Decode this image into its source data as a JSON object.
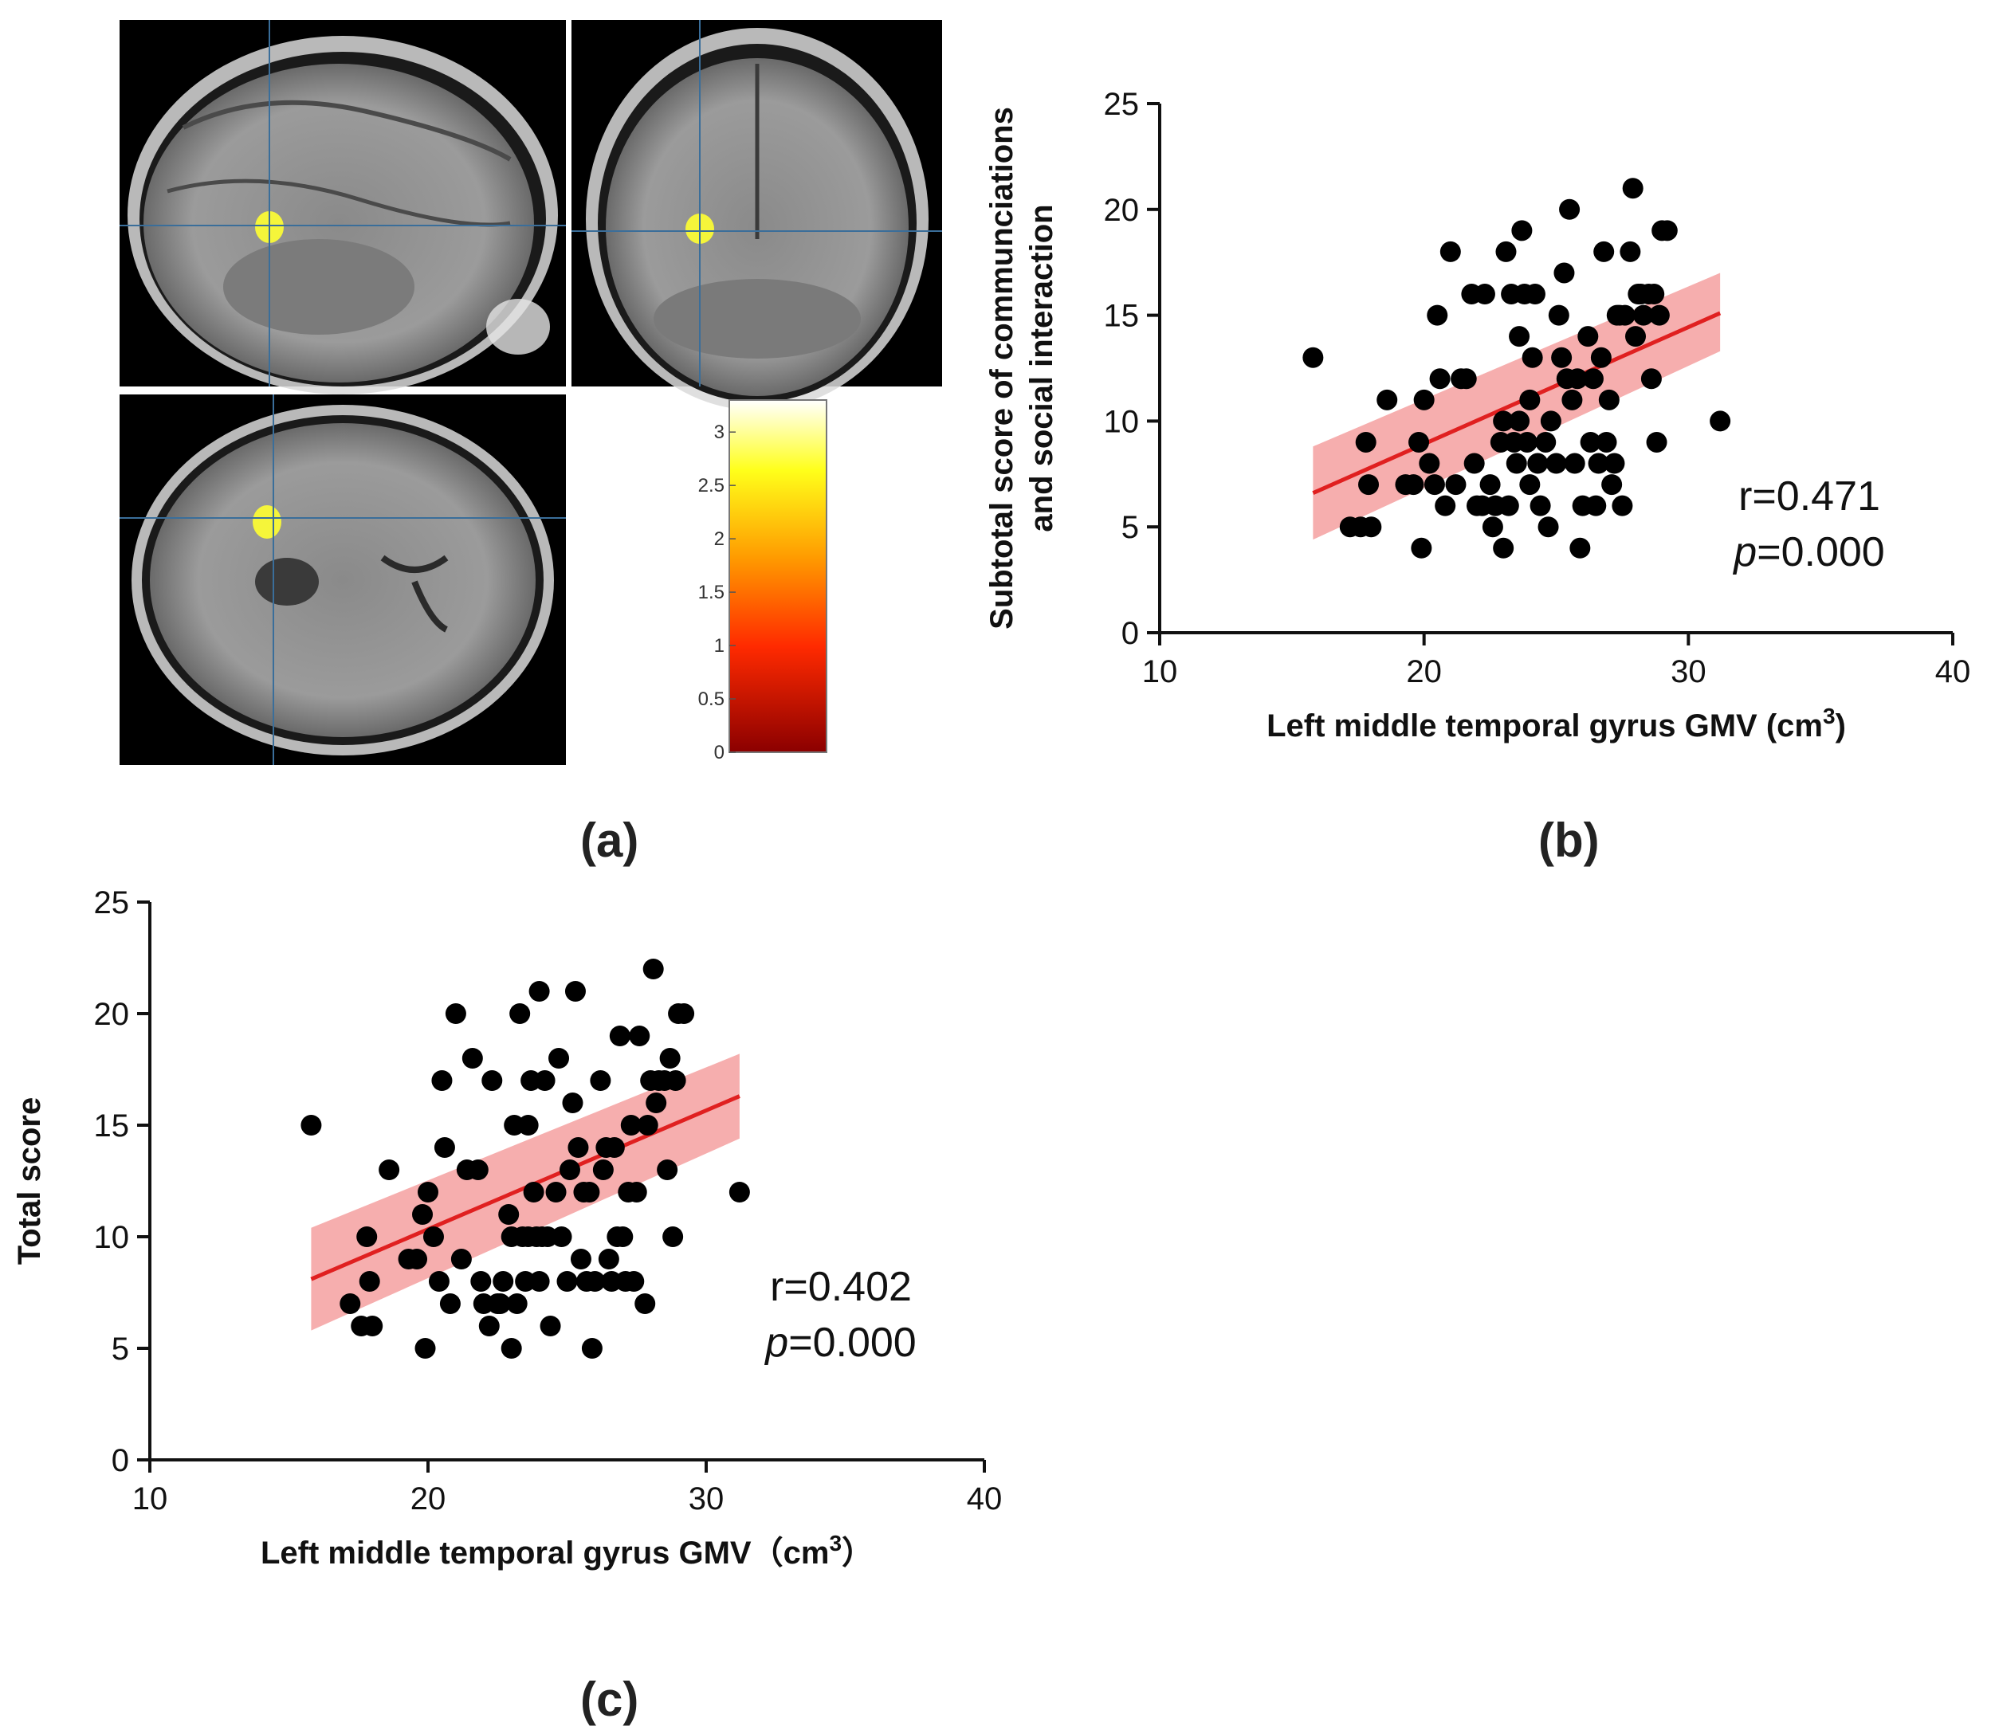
{
  "panel_labels": {
    "a": "(a)",
    "b": "(b)",
    "c": "(c)"
  },
  "colorbar": {
    "ticks": [
      "0",
      "0.5",
      "1",
      "1.5",
      "2",
      "2.5",
      "3"
    ],
    "max": 3.3
  },
  "mri": {
    "views": [
      "sagittal",
      "coronal",
      "axial"
    ],
    "highlight_color": "#f5f53a",
    "crosshair_color": "#3a6e9a"
  },
  "chart_data": [
    {
      "type": "scatter",
      "id": "b",
      "title": "",
      "xlabel": "Left middle temporal gyrus GMV (cm",
      "xlabel_sup": "3",
      "xlabel_close": ")",
      "ylabel_lines": [
        "Subtotal score of communciations",
        "and social interaction"
      ],
      "xlim": [
        10,
        40
      ],
      "ylim": [
        0,
        25
      ],
      "xticks": [
        "10",
        "20",
        "30",
        "40"
      ],
      "yticks": [
        "0",
        "5",
        "10",
        "15",
        "20",
        "25"
      ],
      "stats": {
        "r_label": "r=0.471",
        "p_italic": "p",
        "p_value": "=0.000"
      },
      "fit_line": {
        "x": [
          15.8,
          31.2
        ],
        "y": [
          6.6,
          15.1
        ]
      },
      "ci_band": {
        "x": [
          15.8,
          31.2
        ],
        "lower": [
          4.4,
          13.3
        ],
        "upper": [
          8.8,
          17.0
        ]
      },
      "line_color": "#e02020",
      "band_color": "#f4a0a0",
      "point_color": "#000000",
      "points": [
        [
          15.8,
          13
        ],
        [
          17.2,
          5
        ],
        [
          17.6,
          5
        ],
        [
          17.8,
          9
        ],
        [
          17.9,
          7
        ],
        [
          18.0,
          5
        ],
        [
          18.6,
          11
        ],
        [
          19.3,
          7
        ],
        [
          19.6,
          7
        ],
        [
          19.8,
          9
        ],
        [
          19.9,
          4
        ],
        [
          20.0,
          11
        ],
        [
          20.2,
          8
        ],
        [
          20.4,
          7
        ],
        [
          20.5,
          15
        ],
        [
          20.6,
          12
        ],
        [
          20.8,
          6
        ],
        [
          21.0,
          18
        ],
        [
          21.2,
          7
        ],
        [
          21.4,
          12
        ],
        [
          21.6,
          12
        ],
        [
          21.8,
          16
        ],
        [
          21.9,
          8
        ],
        [
          22.0,
          6
        ],
        [
          22.2,
          6
        ],
        [
          22.3,
          16
        ],
        [
          22.5,
          7
        ],
        [
          22.6,
          5
        ],
        [
          22.7,
          6
        ],
        [
          22.9,
          9
        ],
        [
          23.0,
          10
        ],
        [
          23.0,
          4
        ],
        [
          23.1,
          18
        ],
        [
          23.2,
          6
        ],
        [
          23.3,
          16
        ],
        [
          23.4,
          9
        ],
        [
          23.5,
          8
        ],
        [
          23.6,
          10
        ],
        [
          23.6,
          14
        ],
        [
          23.7,
          19
        ],
        [
          23.8,
          16
        ],
        [
          23.9,
          9
        ],
        [
          24.0,
          11
        ],
        [
          24.0,
          7
        ],
        [
          24.1,
          13
        ],
        [
          24.2,
          16
        ],
        [
          24.3,
          8
        ],
        [
          24.4,
          6
        ],
        [
          24.6,
          9
        ],
        [
          24.7,
          5
        ],
        [
          24.8,
          10
        ],
        [
          25.0,
          8
        ],
        [
          25.1,
          15
        ],
        [
          25.2,
          13
        ],
        [
          25.3,
          17
        ],
        [
          25.4,
          12
        ],
        [
          25.5,
          20
        ],
        [
          25.6,
          11
        ],
        [
          25.7,
          8
        ],
        [
          25.8,
          12
        ],
        [
          25.9,
          4
        ],
        [
          26.0,
          6
        ],
        [
          26.2,
          14
        ],
        [
          26.3,
          9
        ],
        [
          26.4,
          12
        ],
        [
          26.5,
          6
        ],
        [
          26.6,
          8
        ],
        [
          26.7,
          13
        ],
        [
          26.8,
          18
        ],
        [
          26.9,
          9
        ],
        [
          27.0,
          11
        ],
        [
          27.1,
          7
        ],
        [
          27.2,
          8
        ],
        [
          27.3,
          15
        ],
        [
          27.4,
          15
        ],
        [
          27.5,
          6
        ],
        [
          27.6,
          15
        ],
        [
          27.8,
          18
        ],
        [
          27.9,
          21
        ],
        [
          28.0,
          14
        ],
        [
          28.1,
          16
        ],
        [
          28.2,
          16
        ],
        [
          28.3,
          15
        ],
        [
          28.5,
          16
        ],
        [
          28.6,
          12
        ],
        [
          28.7,
          16
        ],
        [
          28.8,
          9
        ],
        [
          28.9,
          15
        ],
        [
          29.0,
          19
        ],
        [
          29.2,
          19
        ],
        [
          31.2,
          10
        ]
      ]
    },
    {
      "type": "scatter",
      "id": "c",
      "title": "",
      "xlabel": "Left middle temporal gyrus GMV（cm",
      "xlabel_sup": "3",
      "xlabel_close": "）",
      "ylabel_lines": [
        "Total score"
      ],
      "xlim": [
        10,
        40
      ],
      "ylim": [
        0,
        25
      ],
      "xticks": [
        "10",
        "20",
        "30",
        "40"
      ],
      "yticks": [
        "0",
        "5",
        "10",
        "15",
        "20",
        "25"
      ],
      "stats": {
        "r_label": "r=0.402",
        "p_italic": "p",
        "p_value": "=0.000"
      },
      "fit_line": {
        "x": [
          15.8,
          31.2
        ],
        "y": [
          8.1,
          16.3
        ]
      },
      "ci_band": {
        "x": [
          15.8,
          31.2
        ],
        "lower": [
          5.8,
          14.4
        ],
        "upper": [
          10.4,
          18.2
        ]
      },
      "line_color": "#e02020",
      "band_color": "#f4a0a0",
      "point_color": "#000000",
      "points": [
        [
          15.8,
          15
        ],
        [
          17.2,
          7
        ],
        [
          17.6,
          6
        ],
        [
          17.8,
          10
        ],
        [
          17.9,
          8
        ],
        [
          18.0,
          6
        ],
        [
          18.6,
          13
        ],
        [
          19.3,
          9
        ],
        [
          19.6,
          9
        ],
        [
          19.8,
          11
        ],
        [
          19.9,
          5
        ],
        [
          20.0,
          12
        ],
        [
          20.2,
          10
        ],
        [
          20.4,
          8
        ],
        [
          20.5,
          17
        ],
        [
          20.6,
          14
        ],
        [
          20.8,
          7
        ],
        [
          21.0,
          20
        ],
        [
          21.2,
          9
        ],
        [
          21.4,
          13
        ],
        [
          21.6,
          18
        ],
        [
          21.8,
          13
        ],
        [
          21.9,
          8
        ],
        [
          22.0,
          7
        ],
        [
          22.2,
          6
        ],
        [
          22.3,
          17
        ],
        [
          22.5,
          7
        ],
        [
          22.6,
          7
        ],
        [
          22.7,
          8
        ],
        [
          22.9,
          11
        ],
        [
          23.0,
          10
        ],
        [
          23.0,
          5
        ],
        [
          23.1,
          15
        ],
        [
          23.2,
          7
        ],
        [
          23.3,
          20
        ],
        [
          23.4,
          10
        ],
        [
          23.5,
          8
        ],
        [
          23.6,
          10
        ],
        [
          23.6,
          15
        ],
        [
          23.7,
          17
        ],
        [
          23.8,
          12
        ],
        [
          23.9,
          10
        ],
        [
          24.0,
          21
        ],
        [
          24.0,
          8
        ],
        [
          24.1,
          10
        ],
        [
          24.2,
          17
        ],
        [
          24.3,
          10
        ],
        [
          24.4,
          6
        ],
        [
          24.6,
          12
        ],
        [
          24.7,
          18
        ],
        [
          24.8,
          10
        ],
        [
          25.0,
          8
        ],
        [
          25.1,
          13
        ],
        [
          25.2,
          16
        ],
        [
          25.3,
          21
        ],
        [
          25.4,
          14
        ],
        [
          25.5,
          9
        ],
        [
          25.6,
          12
        ],
        [
          25.7,
          8
        ],
        [
          25.8,
          12
        ],
        [
          25.9,
          5
        ],
        [
          26.0,
          8
        ],
        [
          26.2,
          17
        ],
        [
          26.3,
          13
        ],
        [
          26.4,
          14
        ],
        [
          26.5,
          9
        ],
        [
          26.6,
          8
        ],
        [
          26.7,
          14
        ],
        [
          26.8,
          10
        ],
        [
          26.9,
          19
        ],
        [
          27.0,
          10
        ],
        [
          27.1,
          8
        ],
        [
          27.2,
          12
        ],
        [
          27.3,
          15
        ],
        [
          27.4,
          8
        ],
        [
          27.5,
          12
        ],
        [
          27.6,
          19
        ],
        [
          27.8,
          7
        ],
        [
          27.9,
          15
        ],
        [
          28.0,
          17
        ],
        [
          28.1,
          22
        ],
        [
          28.2,
          16
        ],
        [
          28.3,
          17
        ],
        [
          28.5,
          17
        ],
        [
          28.6,
          13
        ],
        [
          28.7,
          18
        ],
        [
          28.8,
          10
        ],
        [
          28.9,
          17
        ],
        [
          29.0,
          20
        ],
        [
          29.2,
          20
        ],
        [
          31.2,
          12
        ]
      ]
    }
  ]
}
